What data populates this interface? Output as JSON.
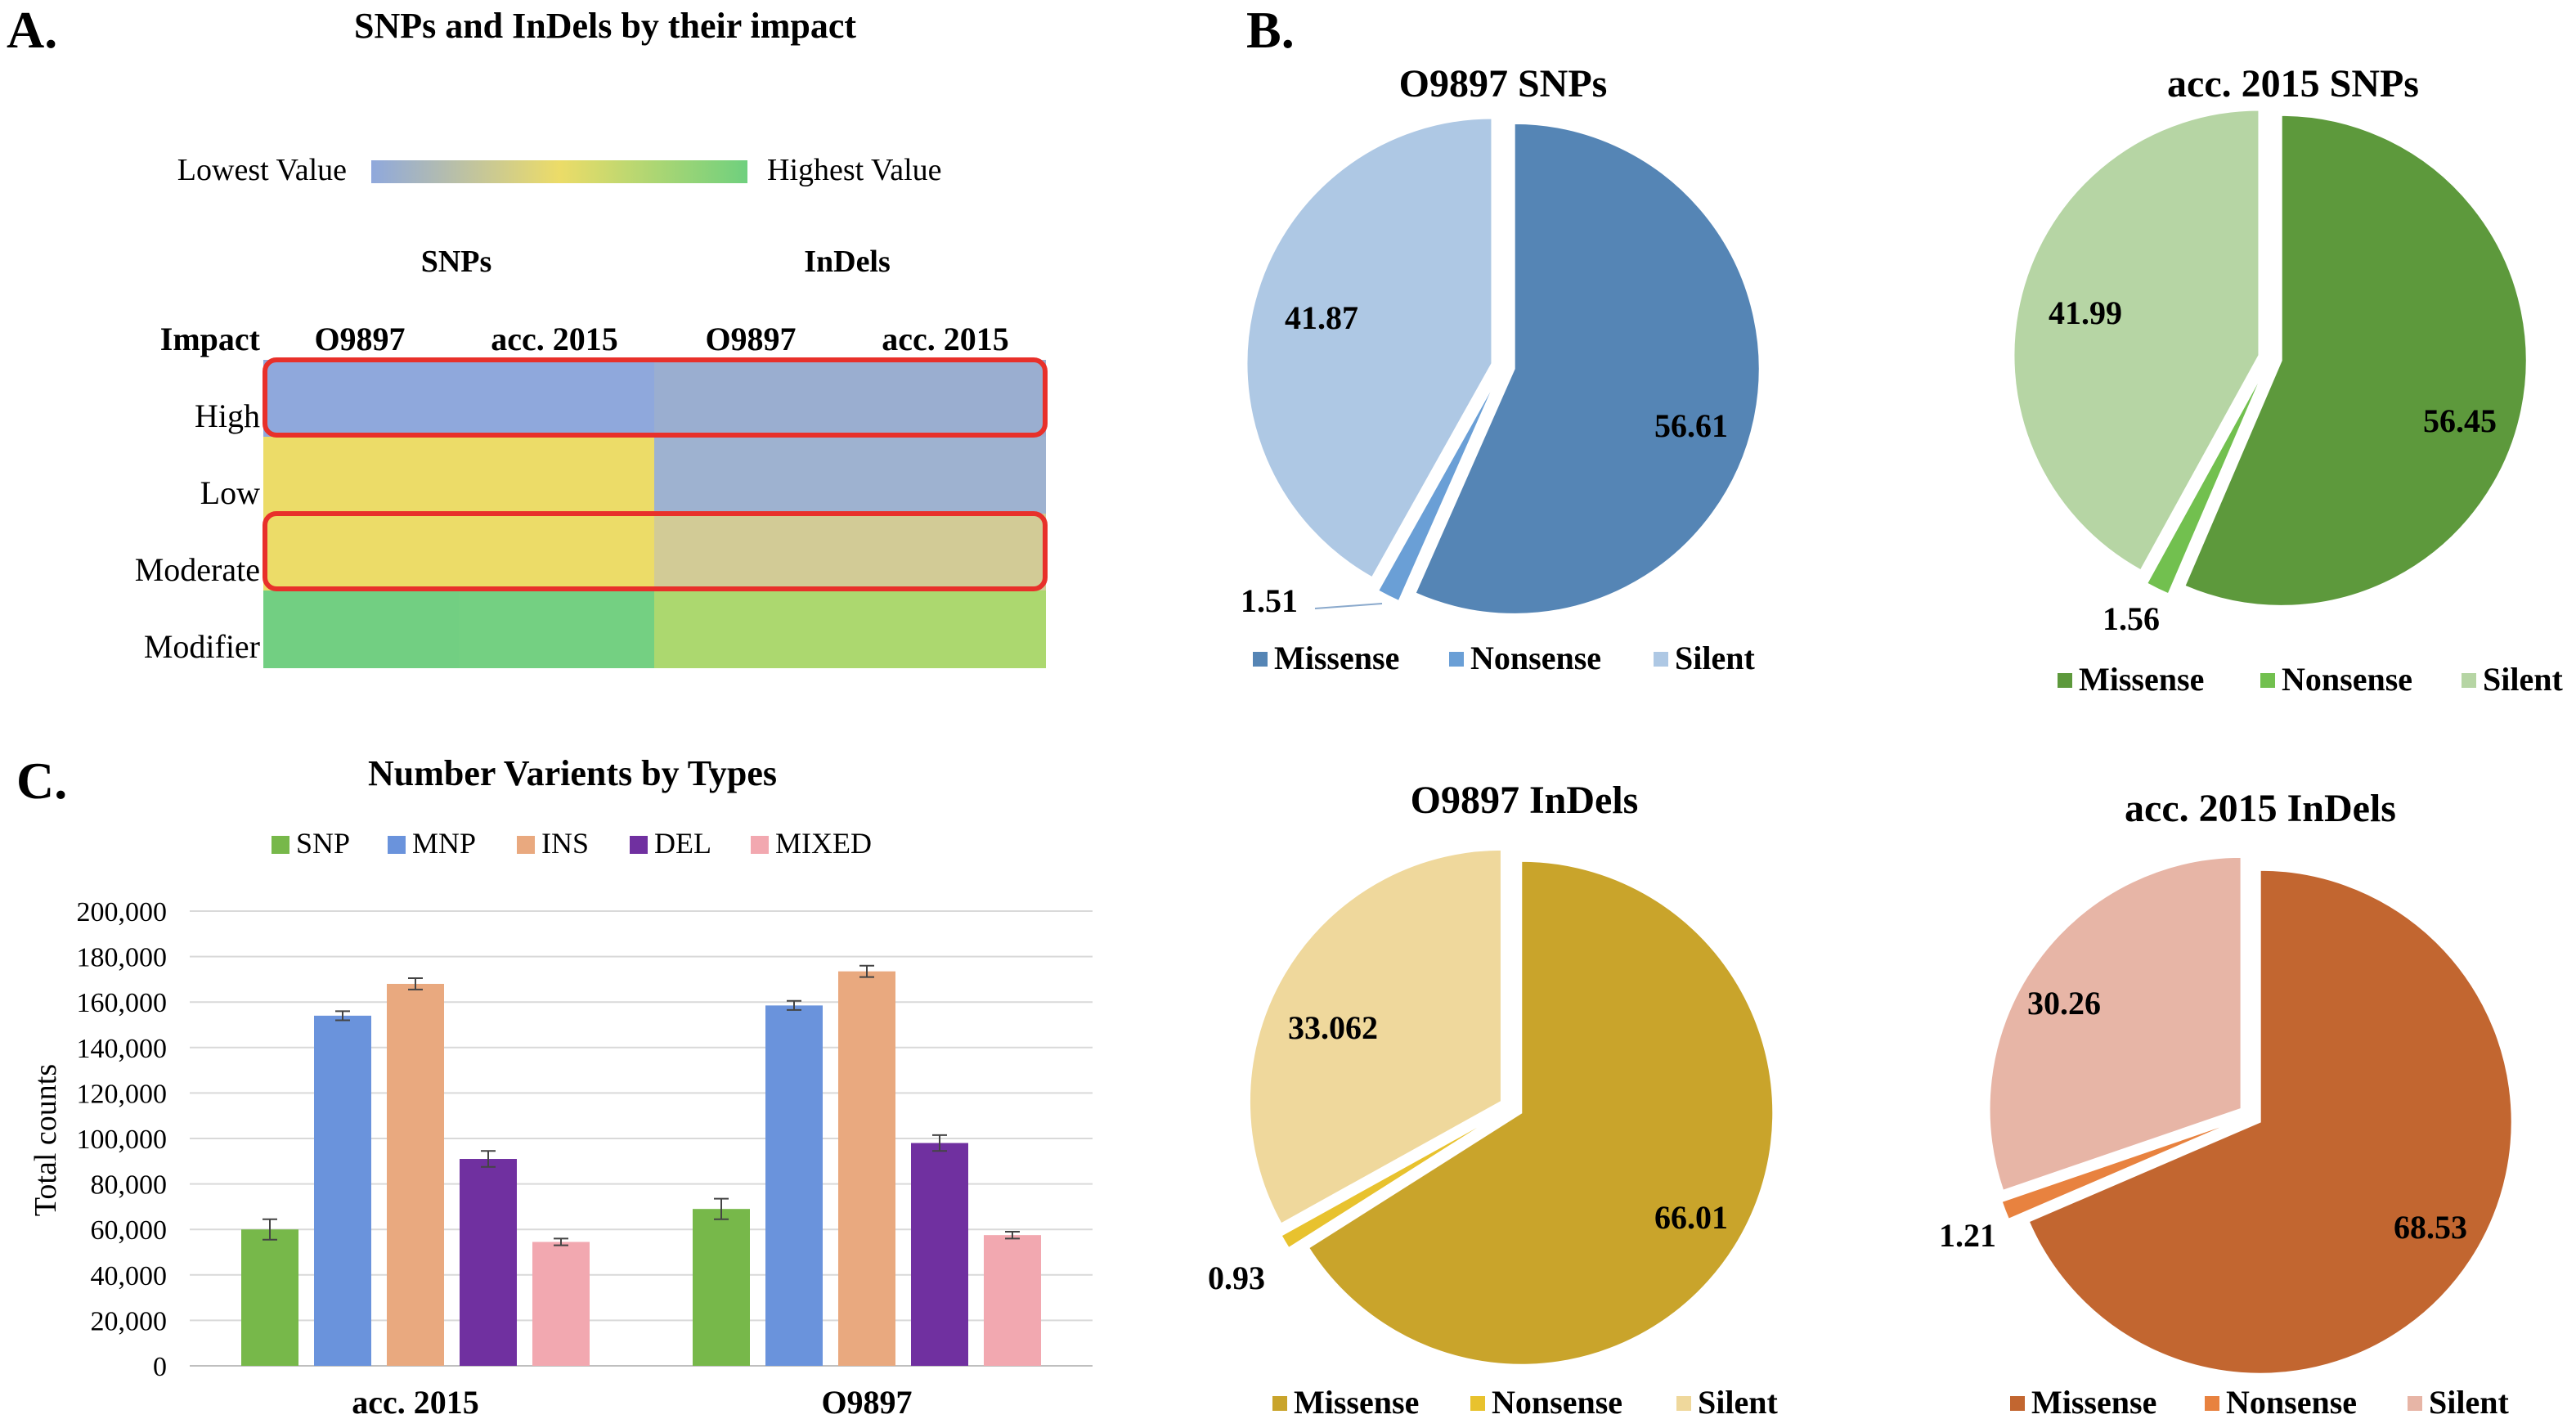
{
  "panels": {
    "a": {
      "letter": "A.",
      "title": "SNPs and InDels by their impact",
      "legend": {
        "low": "Lowest Value",
        "high": "Highest Value"
      },
      "group_headers": [
        "SNPs",
        "InDels"
      ],
      "corner_label": "Impact",
      "column_labels": [
        "O9897",
        "acc. 2015",
        "O9897",
        "acc. 2015"
      ],
      "row_labels": [
        "High",
        "Low",
        "Moderate",
        "Modifier"
      ],
      "colors": {
        "scale_low": "#8fa8dc",
        "scale_mid": "#ecdc68",
        "scale_high": "#6fd07e",
        "highlight_box": "#e8302a"
      }
    },
    "b": {
      "letter": "B."
    },
    "c": {
      "letter": "C."
    }
  },
  "chart_data": [
    {
      "type": "heatmap",
      "title": "SNPs and InDels by their impact",
      "rows": [
        "High",
        "Low",
        "Moderate",
        "Modifier"
      ],
      "columns": [
        "SNPs O9897",
        "SNPs acc. 2015",
        "InDels O9897",
        "InDels acc. 2015"
      ],
      "cell_colors": [
        [
          "#8fa8dc",
          "#8fa8dc",
          "#9aaed0",
          "#9aaed0"
        ],
        [
          "#ecdc68",
          "#ecdc68",
          "#9eb2d0",
          "#9eb2d0"
        ],
        [
          "#ecdc68",
          "#ecdc68",
          "#d2cb96",
          "#d2cb96"
        ],
        [
          "#72cf82",
          "#74d082",
          "#acd86f",
          "#acd86f"
        ]
      ],
      "highlighted_rows": [
        "High",
        "Moderate"
      ]
    },
    {
      "type": "pie",
      "title": "O9897 SNPs",
      "categories": [
        "Missense",
        "Nonsense",
        "Silent"
      ],
      "values": [
        56.61,
        1.51,
        41.87
      ],
      "labels": [
        "56.61",
        "1.51",
        "41.87"
      ],
      "colors": [
        "#5585b5",
        "#6a9fd6",
        "#aec8e4"
      ]
    },
    {
      "type": "pie",
      "title": "acc. 2015 SNPs",
      "categories": [
        "Missense",
        "Nonsense",
        "Silent"
      ],
      "values": [
        56.45,
        1.56,
        41.99
      ],
      "labels": [
        "56.45",
        "1.56",
        "41.99"
      ],
      "colors": [
        "#5d993c",
        "#72c04f",
        "#b6d5a4"
      ]
    },
    {
      "type": "pie",
      "title": "O9897 InDels",
      "categories": [
        "Missense",
        "Nonsense",
        "Silent"
      ],
      "values": [
        66.01,
        0.93,
        33.062
      ],
      "labels": [
        "66.01",
        "0.93",
        "33.062"
      ],
      "colors": [
        "#c9a42b",
        "#e8c22e",
        "#efd89c"
      ]
    },
    {
      "type": "pie",
      "title": "acc. 2015 InDels",
      "categories": [
        "Missense",
        "Nonsense",
        "Silent"
      ],
      "values": [
        68.53,
        1.21,
        30.26
      ],
      "labels": [
        "68.53",
        "1.21",
        "30.26"
      ],
      "colors": [
        "#c26630",
        "#e8823f",
        "#e7b5a6"
      ]
    },
    {
      "type": "bar",
      "title": "Number Varients by Types",
      "ylabel": "Total counts",
      "categories": [
        "acc. 2015",
        "O9897"
      ],
      "ylim": [
        0,
        200000
      ],
      "yticks": [
        "0",
        "20,000",
        "40,000",
        "60,000",
        "80,000",
        "100,000",
        "120,000",
        "140,000",
        "160,000",
        "180,000",
        "200,000"
      ],
      "grid": true,
      "legend_position": "top",
      "series": [
        {
          "name": "SNP",
          "color": "#77b84a",
          "values": [
            60000,
            69000
          ],
          "errors": [
            4500,
            4500
          ]
        },
        {
          "name": "MNP",
          "color": "#6a93dc",
          "values": [
            154000,
            158500
          ],
          "errors": [
            2000,
            2000
          ]
        },
        {
          "name": "INS",
          "color": "#e9a97f",
          "values": [
            168000,
            173500
          ],
          "errors": [
            2500,
            2500
          ]
        },
        {
          "name": "DEL",
          "color": "#7030a0",
          "values": [
            91000,
            98000
          ],
          "errors": [
            3500,
            3500
          ]
        },
        {
          "name": "MIXED",
          "color": "#f2a8b0",
          "values": [
            54500,
            57500
          ],
          "errors": [
            1500,
            1500
          ]
        }
      ]
    }
  ]
}
